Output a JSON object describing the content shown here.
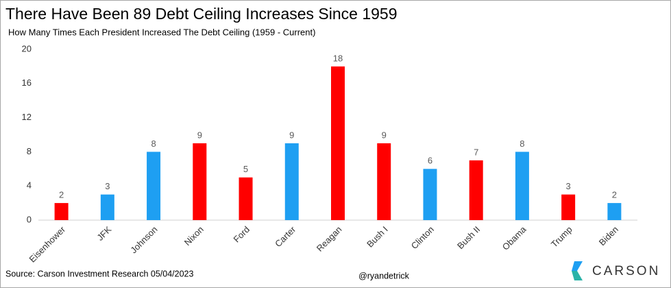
{
  "chart_data": {
    "type": "bar",
    "title": "There Have Been 89 Debt Ceiling Increases Since 1959",
    "subtitle": "How Many Times Each President Increased The Debt Ceiling (1959 - Current)",
    "categories": [
      "Eisenhower",
      "JFK",
      "Johnson",
      "Nixon",
      "Ford",
      "Carter",
      "Reagan",
      "Bush I",
      "Clinton",
      "Bush II",
      "Obama",
      "Trump",
      "Biden"
    ],
    "values": [
      2,
      3,
      8,
      9,
      5,
      9,
      18,
      9,
      6,
      7,
      8,
      3,
      2
    ],
    "colors": [
      "#ff0000",
      "#1e9ff2",
      "#1e9ff2",
      "#ff0000",
      "#ff0000",
      "#1e9ff2",
      "#ff0000",
      "#ff0000",
      "#1e9ff2",
      "#ff0000",
      "#1e9ff2",
      "#ff0000",
      "#1e9ff2"
    ],
    "ylim": [
      0,
      20
    ],
    "yticks": [
      0,
      4,
      8,
      12,
      16,
      20
    ],
    "grid": false,
    "source": "Source: Carson Investment Research 05/04/2023",
    "handle": "@ryandetrick",
    "logo": "CARSON"
  }
}
